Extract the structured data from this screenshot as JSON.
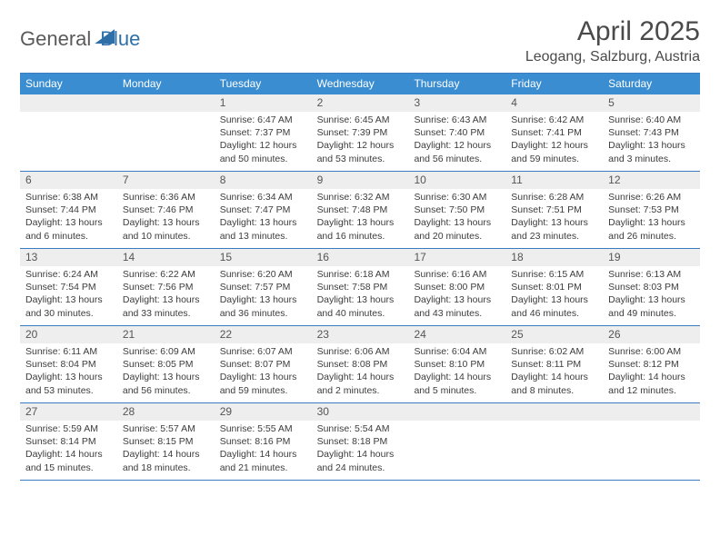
{
  "logo": {
    "part1": "General",
    "part2": "Blue"
  },
  "header": {
    "title": "April 2025",
    "location": "Leogang, Salzburg, Austria"
  },
  "colors": {
    "header_bar": "#3a8dd0",
    "border": "#3a7cbf",
    "daynum_bg": "#eeeeee",
    "text": "#333333",
    "logo_accent": "#2f6fa8"
  },
  "typography": {
    "title_fontsize": 30,
    "subtitle_fontsize": 16,
    "dow_fontsize": 12,
    "body_fontsize": 10.5
  },
  "layout": {
    "columns": 7,
    "rows": 5,
    "leading_blanks": 2,
    "trailing_blanks": 3
  },
  "daysOfWeek": [
    "Sunday",
    "Monday",
    "Tuesday",
    "Wednesday",
    "Thursday",
    "Friday",
    "Saturday"
  ],
  "days": [
    {
      "n": 1,
      "sunrise": "6:47 AM",
      "sunset": "7:37 PM",
      "daylight": "12 hours and 50 minutes."
    },
    {
      "n": 2,
      "sunrise": "6:45 AM",
      "sunset": "7:39 PM",
      "daylight": "12 hours and 53 minutes."
    },
    {
      "n": 3,
      "sunrise": "6:43 AM",
      "sunset": "7:40 PM",
      "daylight": "12 hours and 56 minutes."
    },
    {
      "n": 4,
      "sunrise": "6:42 AM",
      "sunset": "7:41 PM",
      "daylight": "12 hours and 59 minutes."
    },
    {
      "n": 5,
      "sunrise": "6:40 AM",
      "sunset": "7:43 PM",
      "daylight": "13 hours and 3 minutes."
    },
    {
      "n": 6,
      "sunrise": "6:38 AM",
      "sunset": "7:44 PM",
      "daylight": "13 hours and 6 minutes."
    },
    {
      "n": 7,
      "sunrise": "6:36 AM",
      "sunset": "7:46 PM",
      "daylight": "13 hours and 10 minutes."
    },
    {
      "n": 8,
      "sunrise": "6:34 AM",
      "sunset": "7:47 PM",
      "daylight": "13 hours and 13 minutes."
    },
    {
      "n": 9,
      "sunrise": "6:32 AM",
      "sunset": "7:48 PM",
      "daylight": "13 hours and 16 minutes."
    },
    {
      "n": 10,
      "sunrise": "6:30 AM",
      "sunset": "7:50 PM",
      "daylight": "13 hours and 20 minutes."
    },
    {
      "n": 11,
      "sunrise": "6:28 AM",
      "sunset": "7:51 PM",
      "daylight": "13 hours and 23 minutes."
    },
    {
      "n": 12,
      "sunrise": "6:26 AM",
      "sunset": "7:53 PM",
      "daylight": "13 hours and 26 minutes."
    },
    {
      "n": 13,
      "sunrise": "6:24 AM",
      "sunset": "7:54 PM",
      "daylight": "13 hours and 30 minutes."
    },
    {
      "n": 14,
      "sunrise": "6:22 AM",
      "sunset": "7:56 PM",
      "daylight": "13 hours and 33 minutes."
    },
    {
      "n": 15,
      "sunrise": "6:20 AM",
      "sunset": "7:57 PM",
      "daylight": "13 hours and 36 minutes."
    },
    {
      "n": 16,
      "sunrise": "6:18 AM",
      "sunset": "7:58 PM",
      "daylight": "13 hours and 40 minutes."
    },
    {
      "n": 17,
      "sunrise": "6:16 AM",
      "sunset": "8:00 PM",
      "daylight": "13 hours and 43 minutes."
    },
    {
      "n": 18,
      "sunrise": "6:15 AM",
      "sunset": "8:01 PM",
      "daylight": "13 hours and 46 minutes."
    },
    {
      "n": 19,
      "sunrise": "6:13 AM",
      "sunset": "8:03 PM",
      "daylight": "13 hours and 49 minutes."
    },
    {
      "n": 20,
      "sunrise": "6:11 AM",
      "sunset": "8:04 PM",
      "daylight": "13 hours and 53 minutes."
    },
    {
      "n": 21,
      "sunrise": "6:09 AM",
      "sunset": "8:05 PM",
      "daylight": "13 hours and 56 minutes."
    },
    {
      "n": 22,
      "sunrise": "6:07 AM",
      "sunset": "8:07 PM",
      "daylight": "13 hours and 59 minutes."
    },
    {
      "n": 23,
      "sunrise": "6:06 AM",
      "sunset": "8:08 PM",
      "daylight": "14 hours and 2 minutes."
    },
    {
      "n": 24,
      "sunrise": "6:04 AM",
      "sunset": "8:10 PM",
      "daylight": "14 hours and 5 minutes."
    },
    {
      "n": 25,
      "sunrise": "6:02 AM",
      "sunset": "8:11 PM",
      "daylight": "14 hours and 8 minutes."
    },
    {
      "n": 26,
      "sunrise": "6:00 AM",
      "sunset": "8:12 PM",
      "daylight": "14 hours and 12 minutes."
    },
    {
      "n": 27,
      "sunrise": "5:59 AM",
      "sunset": "8:14 PM",
      "daylight": "14 hours and 15 minutes."
    },
    {
      "n": 28,
      "sunrise": "5:57 AM",
      "sunset": "8:15 PM",
      "daylight": "14 hours and 18 minutes."
    },
    {
      "n": 29,
      "sunrise": "5:55 AM",
      "sunset": "8:16 PM",
      "daylight": "14 hours and 21 minutes."
    },
    {
      "n": 30,
      "sunrise": "5:54 AM",
      "sunset": "8:18 PM",
      "daylight": "14 hours and 24 minutes."
    }
  ],
  "labels": {
    "sunrise": "Sunrise:",
    "sunset": "Sunset:",
    "daylight": "Daylight:"
  }
}
